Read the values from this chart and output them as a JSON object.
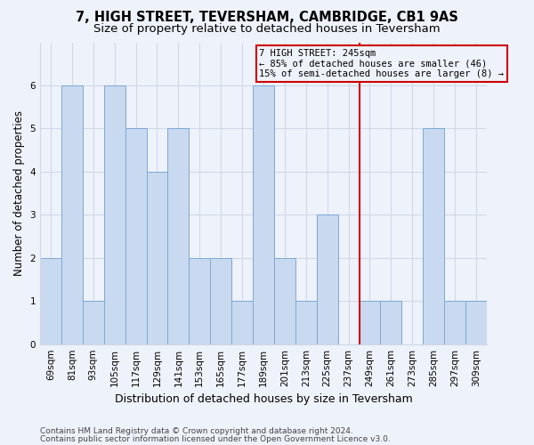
{
  "title1": "7, HIGH STREET, TEVERSHAM, CAMBRIDGE, CB1 9AS",
  "title2": "Size of property relative to detached houses in Teversham",
  "xlabel": "Distribution of detached houses by size in Teversham",
  "ylabel": "Number of detached properties",
  "footer1": "Contains HM Land Registry data © Crown copyright and database right 2024.",
  "footer2": "Contains public sector information licensed under the Open Government Licence v3.0.",
  "categories": [
    "69sqm",
    "81sqm",
    "93sqm",
    "105sqm",
    "117sqm",
    "129sqm",
    "141sqm",
    "153sqm",
    "165sqm",
    "177sqm",
    "189sqm",
    "201sqm",
    "213sqm",
    "225sqm",
    "237sqm",
    "249sqm",
    "261sqm",
    "273sqm",
    "285sqm",
    "297sqm",
    "309sqm"
  ],
  "values": [
    2,
    6,
    1,
    6,
    5,
    4,
    5,
    2,
    2,
    1,
    6,
    2,
    1,
    3,
    0,
    1,
    1,
    0,
    5,
    1,
    1
  ],
  "bar_color": "#c9d9f0",
  "bar_edge_color": "#7baad4",
  "annotation_line1": "7 HIGH STREET: 245sqm",
  "annotation_line2": "← 85% of detached houses are smaller (46)",
  "annotation_line3": "15% of semi-detached houses are larger (8) →",
  "vline_index": 14.5,
  "vline_color": "#cc0000",
  "annotation_box_color": "#cc0000",
  "ylim": [
    0,
    7
  ],
  "yticks": [
    0,
    1,
    2,
    3,
    4,
    5,
    6,
    7
  ],
  "background_color": "#eef2fb",
  "grid_color": "#d0d8e8",
  "title1_fontsize": 10.5,
  "title2_fontsize": 9.5,
  "xlabel_fontsize": 9,
  "ylabel_fontsize": 8.5,
  "tick_fontsize": 7.5,
  "footer_fontsize": 6.5,
  "annot_fontsize": 7.5
}
